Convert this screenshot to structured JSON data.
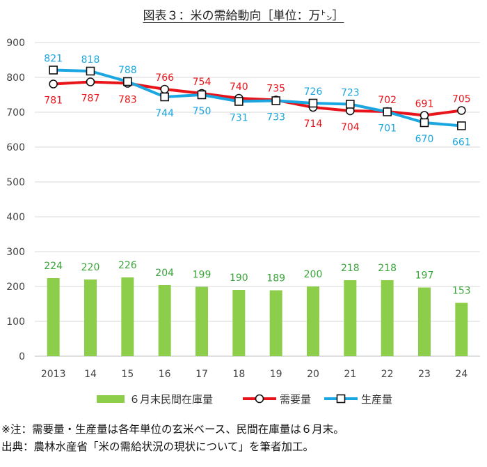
{
  "title": "図表３：米の需給動向［単位：万㌧］",
  "colors": {
    "bar": "#8cce4a",
    "bar_label": "#3aa53a",
    "demand": "#e8141a",
    "production": "#1aa6e0",
    "grid": "#d9d9d9",
    "axis_text": "#444444"
  },
  "chart_data": {
    "type": "bar",
    "title": "図表３：米の需給動向［単位：万㌧］",
    "categories": [
      "2013",
      "14",
      "15",
      "16",
      "17",
      "18",
      "19",
      "20",
      "21",
      "22",
      "23",
      "24"
    ],
    "ylim": [
      0,
      900
    ],
    "yticks": [
      0,
      100,
      200,
      300,
      400,
      500,
      600,
      700,
      800,
      900
    ],
    "grid": true,
    "legend_position": "bottom",
    "series": [
      {
        "name": "６月末民間在庫量",
        "kind": "bar",
        "marker": "none",
        "values": [
          224,
          220,
          226,
          204,
          199,
          190,
          189,
          200,
          218,
          218,
          197,
          153
        ]
      },
      {
        "name": "需要量",
        "kind": "line",
        "marker": "circle",
        "values": [
          781,
          787,
          783,
          766,
          754,
          740,
          735,
          714,
          704,
          702,
          691,
          705
        ]
      },
      {
        "name": "生産量",
        "kind": "line",
        "marker": "square",
        "values": [
          821,
          818,
          788,
          744,
          750,
          731,
          733,
          726,
          723,
          701,
          670,
          661
        ]
      }
    ]
  },
  "notes": [
    "※注：需要量・生産量は各年単位の玄米ベース、民間在庫量は６月末。",
    "出典：農林水産省「米の需給状況の現状について」を筆者加工。"
  ]
}
